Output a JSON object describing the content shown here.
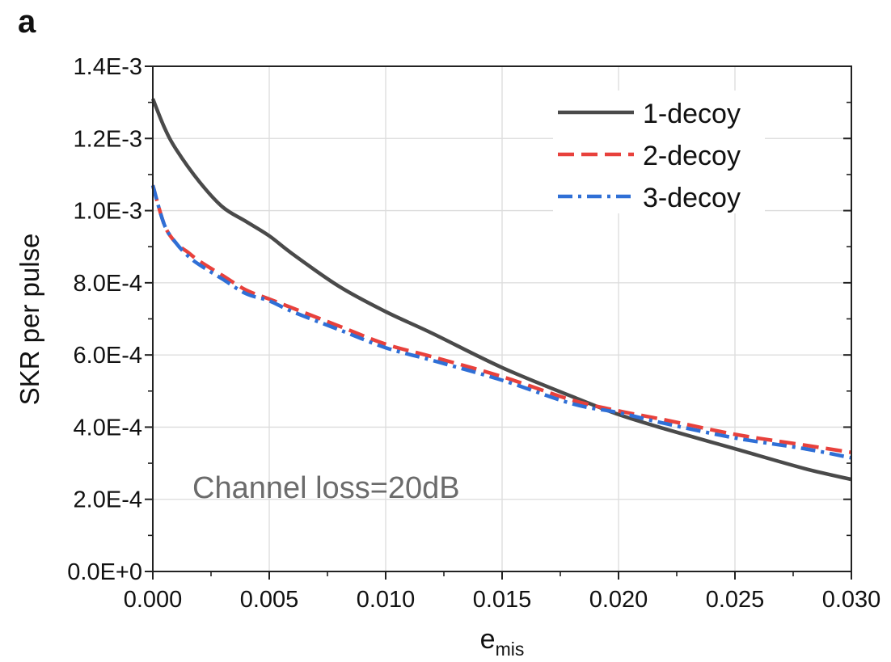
{
  "panel_label": "a",
  "chart_data": {
    "type": "line",
    "xlabel": "e",
    "xlabel_sub": "mis",
    "ylabel": "SKR per pulse",
    "annotation": "Channel loss=20dB",
    "xlim": [
      0.0,
      0.03
    ],
    "ylim": [
      0.0,
      0.0014
    ],
    "x_ticks": [
      0.0,
      0.005,
      0.01,
      0.015,
      0.02,
      0.025,
      0.03
    ],
    "x_tick_labels": [
      "0.000",
      "0.005",
      "0.010",
      "0.015",
      "0.020",
      "0.025",
      "0.030"
    ],
    "y_ticks": [
      0.0,
      0.0002,
      0.0004,
      0.0006,
      0.0008,
      0.001,
      0.0012,
      0.0014
    ],
    "y_tick_labels": [
      "0.0E+0",
      "2.0E-4",
      "4.0E-4",
      "6.0E-4",
      "8.0E-4",
      "1.0E-3",
      "1.2E-3",
      "1.4E-3"
    ],
    "grid": true,
    "legend_position": "top-right",
    "series": [
      {
        "name": "1-decoy",
        "color": "#4a4a4a",
        "dash": "solid",
        "x": [
          0.0,
          0.0005,
          0.001,
          0.002,
          0.003,
          0.004,
          0.005,
          0.006,
          0.008,
          0.01,
          0.012,
          0.015,
          0.018,
          0.02,
          0.022,
          0.025,
          0.028,
          0.03
        ],
        "y": [
          0.00131,
          0.00123,
          0.00117,
          0.00108,
          0.00101,
          0.00097,
          0.00093,
          0.00088,
          0.00079,
          0.00072,
          0.00066,
          0.000565,
          0.000485,
          0.000435,
          0.000395,
          0.00034,
          0.000285,
          0.000255
        ]
      },
      {
        "name": "2-decoy",
        "color": "#e8413c",
        "dash": "dashed",
        "x": [
          0.0,
          0.0005,
          0.001,
          0.0015,
          0.002,
          0.003,
          0.004,
          0.005,
          0.006,
          0.008,
          0.01,
          0.012,
          0.015,
          0.018,
          0.02,
          0.022,
          0.025,
          0.028,
          0.03
        ],
        "y": [
          0.00107,
          0.00096,
          0.00091,
          0.000885,
          0.00086,
          0.00082,
          0.00078,
          0.000755,
          0.00073,
          0.00068,
          0.00063,
          0.000595,
          0.00054,
          0.000475,
          0.000445,
          0.00042,
          0.00038,
          0.00035,
          0.00033
        ]
      },
      {
        "name": "3-decoy",
        "color": "#2f6fd6",
        "dash": "dashdot",
        "x": [
          0.0,
          0.0005,
          0.001,
          0.0015,
          0.002,
          0.003,
          0.004,
          0.005,
          0.006,
          0.008,
          0.01,
          0.012,
          0.015,
          0.018,
          0.02,
          0.022,
          0.025,
          0.028,
          0.03
        ],
        "y": [
          0.00107,
          0.00096,
          0.00091,
          0.000875,
          0.00085,
          0.00081,
          0.00077,
          0.00075,
          0.00072,
          0.00067,
          0.00062,
          0.000585,
          0.00053,
          0.000465,
          0.00044,
          0.00041,
          0.00037,
          0.00034,
          0.000315
        ]
      }
    ]
  }
}
